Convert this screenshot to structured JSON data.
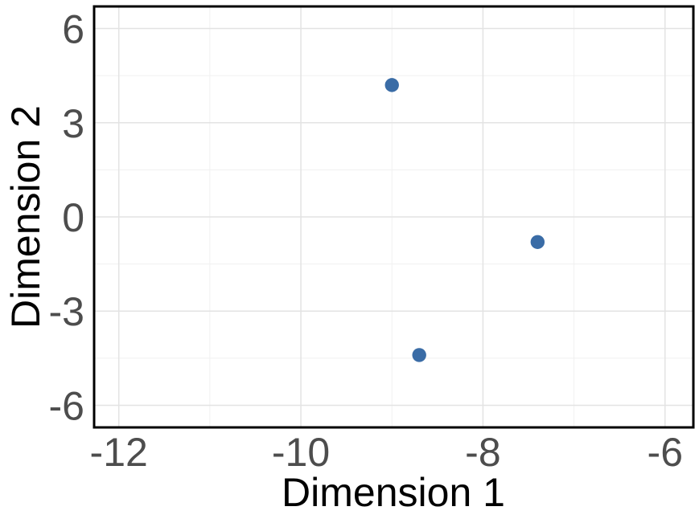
{
  "chart_data": {
    "type": "scatter",
    "title": "",
    "xlabel": "Dimension 1",
    "ylabel": "Dimension 2",
    "points": [
      {
        "x": -9.0,
        "y": 4.2
      },
      {
        "x": -7.4,
        "y": -0.8
      },
      {
        "x": -8.7,
        "y": -4.4
      }
    ],
    "xlim": [
      -12.28,
      -5.68
    ],
    "ylim": [
      -6.73,
      6.73
    ],
    "x_ticks": [
      -12,
      -10,
      -8,
      -6
    ],
    "x_tick_labels": [
      "-12",
      "-10",
      "-8",
      "-6"
    ],
    "y_ticks": [
      -6,
      -3,
      0,
      3,
      6
    ],
    "y_tick_labels": [
      "-6",
      "-3",
      "0",
      "3",
      "6"
    ],
    "x_minor_ticks": [
      -11,
      -9,
      -7
    ],
    "y_minor_ticks": [
      -4.5,
      -1.5,
      1.5,
      4.5
    ],
    "grid": "on",
    "legend": "none",
    "colors": {
      "point": "#3A6CA6",
      "grid_major": "#E3E3E3",
      "grid_minor": "#F0F0F0",
      "panel_border": "#000000",
      "tick_label": "#4D4D4D",
      "axis_title": "#000000",
      "background": "#FFFFFF"
    },
    "point_radius_px": 8.7
  }
}
